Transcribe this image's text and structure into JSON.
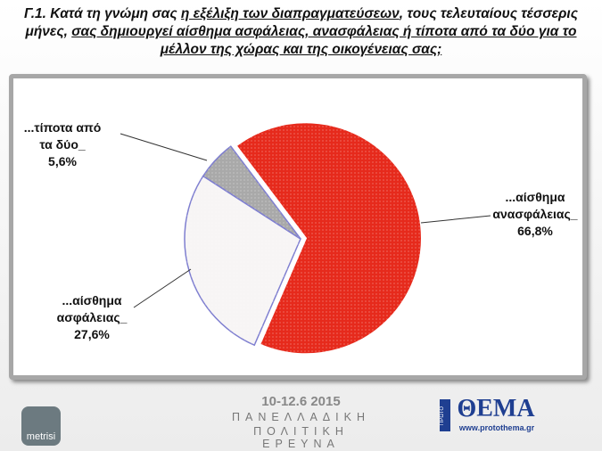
{
  "chart_data": {
    "type": "pie",
    "title_parts": [
      {
        "text": "Γ.1.  Κατά τη γνώμη σας ",
        "underline": false
      },
      {
        "text": "η εξέλιξη των διαπραγματεύσεων",
        "underline": true
      },
      {
        "text": ", τους τελευταίους τέσσερις μήνες, ",
        "underline": false
      },
      {
        "text": "σας δημιουργεί αίσθημα ασφάλειας, ανασφάλειας ή τίποτα από τα δύο για το μέλλον της χώρας και της οικογένειας σας;",
        "underline": true
      }
    ],
    "categories": [
      "...αίσθημα ανασφάλειας_",
      "...αίσθημα ασφάλειας_",
      "...τίποτα από τα δύο_"
    ],
    "values": [
      66.8,
      27.6,
      5.6
    ],
    "value_labels": [
      "66,8%",
      "27,6%",
      "5,6%"
    ],
    "colors": [
      "#e62a1c",
      "#f7f5f5",
      "#a9a9a9"
    ]
  },
  "footer": {
    "date": "10-12.6 2015",
    "line1": "ΠΑΝΕΛΛΑΔΙΚΗ",
    "line2": "ΠΟΛΙΤΙΚΗ ΕΡΕΥΝΑ",
    "left_logo": "metrisi",
    "right_logo_small": "ΠΡΩΤΟ",
    "right_logo": "ΘΕΜΑ",
    "right_url": "www.protothema.gr"
  }
}
